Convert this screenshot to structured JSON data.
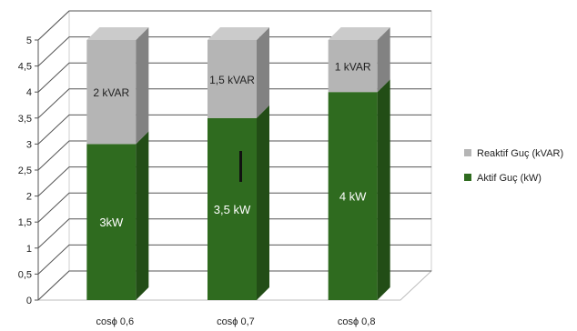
{
  "chart_data": {
    "type": "bar",
    "stacked": true,
    "categories": [
      "cosϕ 0,6",
      "cosϕ 0,7",
      "cosϕ 0,8"
    ],
    "series": [
      {
        "name": "Aktif Guç (kW)",
        "values": [
          3,
          3.5,
          4
        ],
        "labels": [
          "3kW",
          "3,5 kW",
          "4 kW"
        ],
        "color": "#2f6b1f"
      },
      {
        "name": "Reaktif Guç (kVAR)",
        "values": [
          2,
          1.5,
          1
        ],
        "labels": [
          "2 kVAR",
          "1,5 kVAR",
          "1 kVAR"
        ],
        "color": "#b5b5b5"
      }
    ],
    "yticks": [
      "0",
      "0,5",
      "1",
      "1,5",
      "2",
      "2,5",
      "3",
      "3,5",
      "4",
      "4,5",
      "5"
    ],
    "ylim": [
      0,
      5
    ],
    "grid": true,
    "legend_position": "right"
  }
}
